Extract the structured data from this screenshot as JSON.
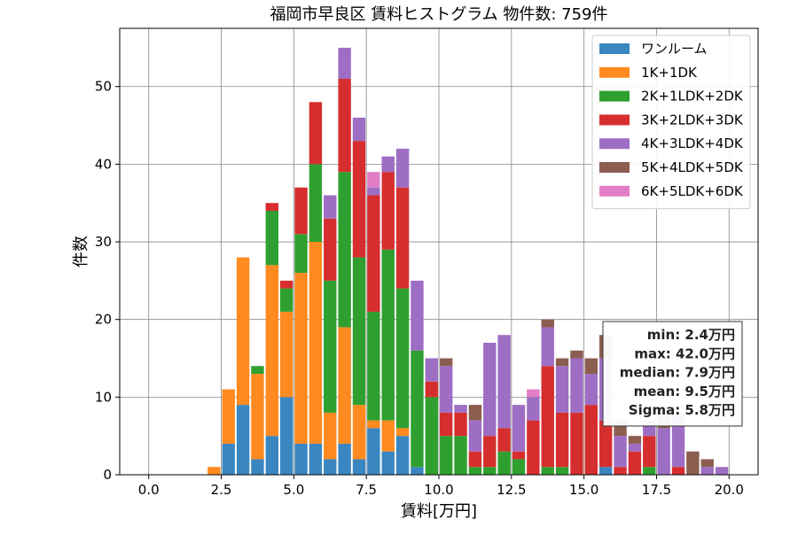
{
  "chart_data": {
    "type": "bar",
    "stacked": true,
    "title": "福岡市早良区 賃料ヒストグラム 物件数: 759件",
    "xlabel": "賃料[万円]",
    "ylabel": "件数",
    "xlim": [
      -1,
      21
    ],
    "ylim": [
      0,
      57.5
    ],
    "xticks": [
      0.0,
      2.5,
      5.0,
      7.5,
      10.0,
      12.5,
      15.0,
      17.5,
      20.0
    ],
    "xtick_labels": [
      "0.0",
      "2.5",
      "5.0",
      "7.5",
      "10.0",
      "12.5",
      "15.0",
      "17.5",
      "20.0"
    ],
    "yticks": [
      0,
      10,
      20,
      30,
      40,
      50
    ],
    "ytick_labels": [
      "0",
      "10",
      "20",
      "30",
      "40",
      "50"
    ],
    "grid": true,
    "legend_position": "top-right",
    "bin_width": 0.5,
    "x": [
      1.5,
      2.0,
      2.5,
      3.0,
      3.5,
      4.0,
      4.5,
      5.0,
      5.5,
      6.0,
      6.5,
      7.0,
      7.5,
      8.0,
      8.5,
      9.0,
      9.5,
      10.0,
      10.5,
      11.0,
      11.5,
      12.0,
      12.5,
      13.0,
      13.5,
      14.0,
      14.5,
      15.0,
      15.5,
      16.0,
      16.5,
      17.0,
      17.5,
      18.0,
      18.5,
      19.0,
      19.5
    ],
    "series": [
      {
        "name": "ワンルーム",
        "color": "#3a86c0",
        "values": [
          0,
          0,
          4,
          9,
          2,
          5,
          10,
          4,
          4,
          2,
          4,
          2,
          6,
          3,
          5,
          1,
          0,
          0,
          0,
          0,
          0,
          0,
          0,
          0,
          0,
          0,
          0,
          0,
          1,
          0,
          0,
          0,
          0,
          0,
          0,
          0,
          0
        ]
      },
      {
        "name": "1K+1DK",
        "color": "#ff8a1f",
        "values": [
          0,
          1,
          7,
          19,
          11,
          22,
          11,
          22,
          26,
          6,
          15,
          7,
          1,
          4,
          1,
          0,
          0,
          0,
          0,
          0,
          0,
          0,
          0,
          0,
          0,
          0,
          0,
          0,
          0,
          0,
          0,
          0,
          0,
          0,
          0,
          0,
          0
        ]
      },
      {
        "name": "2K+1LDK+2DK",
        "color": "#2fa02f",
        "values": [
          0,
          0,
          0,
          0,
          1,
          7,
          3,
          5,
          10,
          17,
          20,
          19,
          14,
          22,
          18,
          15,
          10,
          5,
          5,
          1,
          1,
          3,
          2,
          0,
          1,
          1,
          0,
          0,
          0,
          0,
          0,
          1,
          0,
          0,
          0,
          0,
          0
        ]
      },
      {
        "name": "3K+2LDK+3DK",
        "color": "#d62e2e",
        "values": [
          0,
          0,
          0,
          0,
          0,
          1,
          1,
          6,
          8,
          8,
          12,
          15,
          15,
          10,
          13,
          0,
          2,
          3,
          3,
          2,
          4,
          3,
          1,
          7,
          13,
          7,
          8,
          9,
          6,
          1,
          3,
          4,
          0,
          1,
          0,
          0,
          0
        ]
      },
      {
        "name": "4K+3LDK+4DK",
        "color": "#9d6ec4",
        "values": [
          0,
          0,
          0,
          0,
          0,
          0,
          0,
          0,
          0,
          3,
          4,
          3,
          1,
          2,
          5,
          9,
          3,
          6,
          1,
          4,
          12,
          12,
          6,
          3,
          5,
          6,
          7,
          4,
          8,
          4,
          1,
          2,
          6,
          7,
          0,
          1,
          1
        ]
      },
      {
        "name": "5K+4LDK+5DK",
        "color": "#8c5e50",
        "values": [
          0,
          0,
          0,
          0,
          0,
          0,
          0,
          0,
          0,
          0,
          0,
          0,
          0,
          0,
          0,
          0,
          0,
          1,
          0,
          2,
          0,
          0,
          0,
          0,
          1,
          1,
          1,
          2,
          3,
          2,
          1,
          0,
          2,
          0,
          3,
          1,
          0
        ]
      },
      {
        "name": "6K+5LDK+6DK",
        "color": "#e27ec6",
        "values": [
          0,
          0,
          0,
          0,
          0,
          0,
          0,
          0,
          0,
          0,
          0,
          0,
          2,
          0,
          0,
          0,
          0,
          0,
          0,
          0,
          0,
          0,
          0,
          1,
          0,
          0,
          0,
          0,
          0,
          0,
          0,
          0,
          0,
          0,
          0,
          0,
          0
        ]
      }
    ],
    "stats": {
      "lines": [
        "min: 2.4万円",
        "max: 42.0万円",
        "median: 7.9万円",
        "mean: 9.5万円",
        "Sigma: 5.8万円"
      ]
    }
  }
}
